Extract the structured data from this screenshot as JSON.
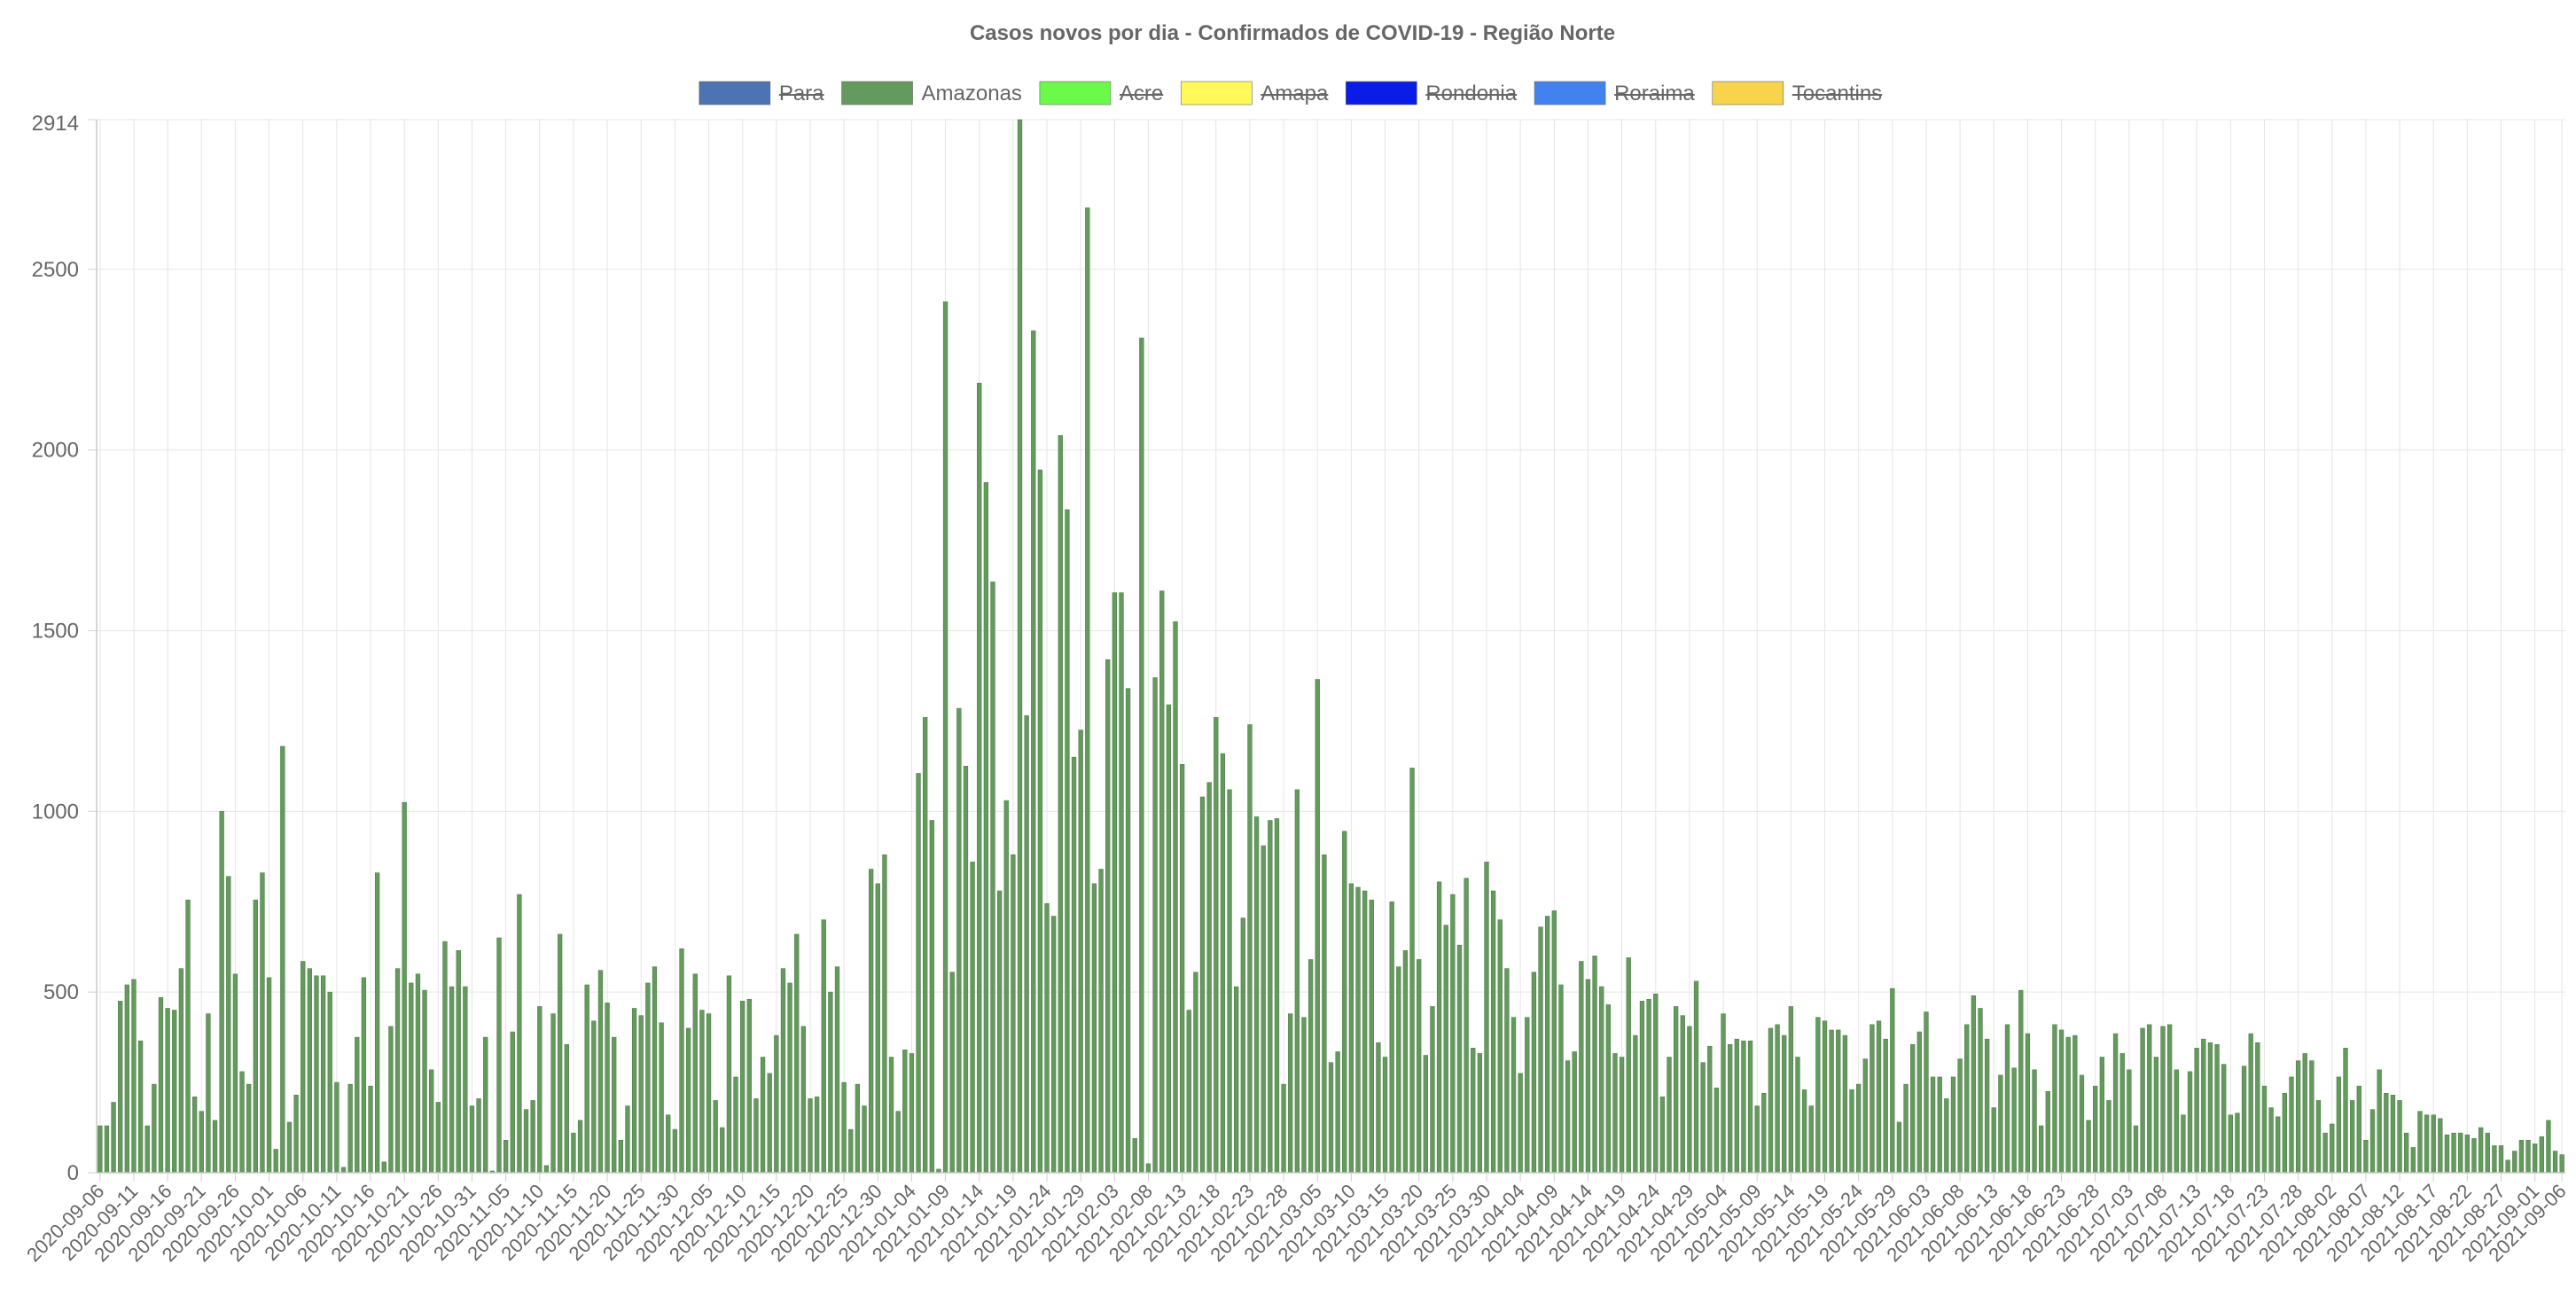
{
  "chart_data": {
    "type": "bar",
    "title": "Casos novos por dia - Confirmados de COVID-19 - Região Norte",
    "xlabel": "",
    "ylabel": "",
    "ylim": [
      0,
      2914
    ],
    "y_ticks": [
      "0",
      "500",
      "1000",
      "1500",
      "2000",
      "2500",
      "2914"
    ],
    "grid": true,
    "legend_position": "top-center",
    "legend": [
      {
        "name": "Para",
        "color": "#4e73b3",
        "hidden": true
      },
      {
        "name": "Amazonas",
        "color": "#659a5e",
        "hidden": false
      },
      {
        "name": "Acre",
        "color": "#6cfa4a",
        "hidden": true
      },
      {
        "name": "Amapa",
        "color": "#fffa5a",
        "hidden": true
      },
      {
        "name": "Rondonia",
        "color": "#0a1ce8",
        "hidden": true
      },
      {
        "name": "Roraima",
        "color": "#4182f0",
        "hidden": true
      },
      {
        "name": "Tocantins",
        "color": "#f7d44c",
        "hidden": true
      }
    ],
    "x_ticks": [
      "2020-09-06",
      "2020-09-11",
      "2020-09-16",
      "2020-09-21",
      "2020-09-26",
      "2020-10-01",
      "2020-10-06",
      "2020-10-11",
      "2020-10-16",
      "2020-10-21",
      "2020-10-26",
      "2020-10-31",
      "2020-11-05",
      "2020-11-10",
      "2020-11-15",
      "2020-11-20",
      "2020-11-25",
      "2020-11-30",
      "2020-12-05",
      "2020-12-10",
      "2020-12-15",
      "2020-12-20",
      "2020-12-25",
      "2020-12-30",
      "2021-01-04",
      "2021-01-09",
      "2021-01-14",
      "2021-01-19",
      "2021-01-24",
      "2021-01-29",
      "2021-02-03",
      "2021-02-08",
      "2021-02-13",
      "2021-02-18",
      "2021-02-23",
      "2021-02-28",
      "2021-03-05",
      "2021-03-10",
      "2021-03-15",
      "2021-03-20",
      "2021-03-25",
      "2021-03-30",
      "2021-04-04",
      "2021-04-09",
      "2021-04-14",
      "2021-04-19",
      "2021-04-24",
      "2021-04-29",
      "2021-05-04",
      "2021-05-09",
      "2021-05-14",
      "2021-05-19",
      "2021-05-24",
      "2021-05-29",
      "2021-06-03",
      "2021-06-08",
      "2021-06-13",
      "2021-06-18",
      "2021-06-23",
      "2021-06-28",
      "2021-07-03",
      "2021-07-08",
      "2021-07-13",
      "2021-07-18",
      "2021-07-23",
      "2021-07-28",
      "2021-08-02",
      "2021-08-07",
      "2021-08-12",
      "2021-08-17",
      "2021-08-22",
      "2021-08-27",
      "2021-09-01",
      "2021-09-06"
    ],
    "x_start": "2020-09-06",
    "series": [
      {
        "name": "Amazonas",
        "color": "#659a5e",
        "values": [
          130,
          130,
          195,
          475,
          520,
          535,
          365,
          130,
          245,
          485,
          455,
          450,
          565,
          755,
          210,
          170,
          440,
          145,
          1000,
          820,
          550,
          280,
          245,
          755,
          830,
          540,
          65,
          1180,
          140,
          215,
          585,
          565,
          545,
          545,
          500,
          250,
          15,
          245,
          375,
          540,
          240,
          830,
          30,
          405,
          565,
          1025,
          525,
          550,
          505,
          285,
          195,
          640,
          515,
          615,
          515,
          185,
          205,
          375,
          5,
          650,
          90,
          390,
          770,
          175,
          200,
          460,
          20,
          440,
          660,
          355,
          110,
          145,
          520,
          420,
          560,
          470,
          375,
          90,
          185,
          455,
          435,
          525,
          570,
          415,
          160,
          120,
          620,
          400,
          550,
          450,
          440,
          200,
          125,
          545,
          265,
          475,
          480,
          205,
          320,
          275,
          380,
          565,
          525,
          660,
          405,
          205,
          210,
          700,
          500,
          570,
          250,
          120,
          245,
          185,
          840,
          800,
          880,
          320,
          170,
          340,
          330,
          1105,
          1260,
          975,
          10,
          2410,
          555,
          1285,
          1125,
          860,
          2185,
          1910,
          1635,
          780,
          1030,
          880,
          2914,
          1265,
          2330,
          1945,
          745,
          710,
          2040,
          1835,
          1150,
          1225,
          2670,
          800,
          840,
          1420,
          1605,
          1605,
          1340,
          95,
          2310,
          25,
          1370,
          1610,
          1295,
          1525,
          1130,
          450,
          555,
          1040,
          1080,
          1260,
          1160,
          1060,
          515,
          705,
          1240,
          985,
          905,
          975,
          980,
          245,
          440,
          1060,
          430,
          590,
          1365,
          880,
          305,
          335,
          945,
          800,
          790,
          780,
          755,
          360,
          320,
          750,
          570,
          615,
          1120,
          590,
          325,
          460,
          805,
          685,
          770,
          630,
          815,
          345,
          330,
          860,
          780,
          700,
          565,
          430,
          275,
          430,
          555,
          680,
          710,
          725,
          520,
          310,
          335,
          585,
          535,
          600,
          515,
          465,
          330,
          320,
          595,
          380,
          475,
          480,
          495,
          210,
          320,
          460,
          435,
          405,
          530,
          305,
          350,
          235,
          440,
          355,
          370,
          365,
          365,
          185,
          220,
          400,
          410,
          380,
          460,
          320,
          230,
          185,
          430,
          420,
          395,
          395,
          380,
          230,
          245,
          315,
          410,
          420,
          370,
          510,
          140,
          245,
          355,
          390,
          445,
          265,
          265,
          205,
          265,
          315,
          410,
          490,
          455,
          370,
          180,
          270,
          410,
          290,
          505,
          385,
          285,
          130,
          225,
          410,
          395,
          375,
          380,
          270,
          145,
          240,
          320,
          200,
          385,
          330,
          285,
          130,
          400,
          410,
          320,
          405,
          410,
          285,
          160,
          280,
          345,
          370,
          360,
          355,
          300,
          160,
          165,
          295,
          385,
          360,
          240,
          180,
          155,
          220,
          265,
          310,
          330,
          310,
          200,
          110,
          135,
          265,
          345,
          200,
          240,
          90,
          175,
          285,
          220,
          215,
          200,
          110,
          70,
          170,
          160,
          160,
          150,
          105,
          110,
          110,
          105,
          95,
          125,
          110,
          75,
          75,
          35,
          60,
          90,
          90,
          80,
          100,
          145,
          60,
          50
        ]
      }
    ]
  }
}
